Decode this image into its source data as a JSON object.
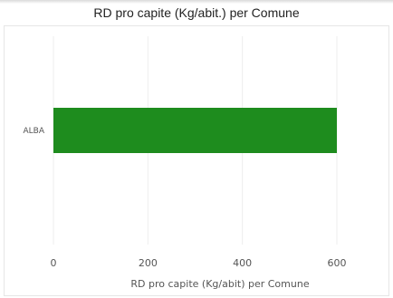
{
  "chart_data": {
    "type": "bar",
    "orientation": "horizontal",
    "title": "RD pro capite (Kg/abit.) per Comune",
    "xlabel": "RD pro capite (Kg/abit) per Comune",
    "ylabel": "",
    "categories": [
      "ALBA"
    ],
    "values": [
      600
    ],
    "xlim": [
      0,
      600
    ],
    "xticks": [
      0,
      200,
      400,
      600
    ],
    "grid": "vertical",
    "legend": "none",
    "colors": {
      "bar": "#1e8c1e",
      "grid": "#eeeeee",
      "tick_text": "#555555",
      "title_text": "#222222"
    }
  }
}
